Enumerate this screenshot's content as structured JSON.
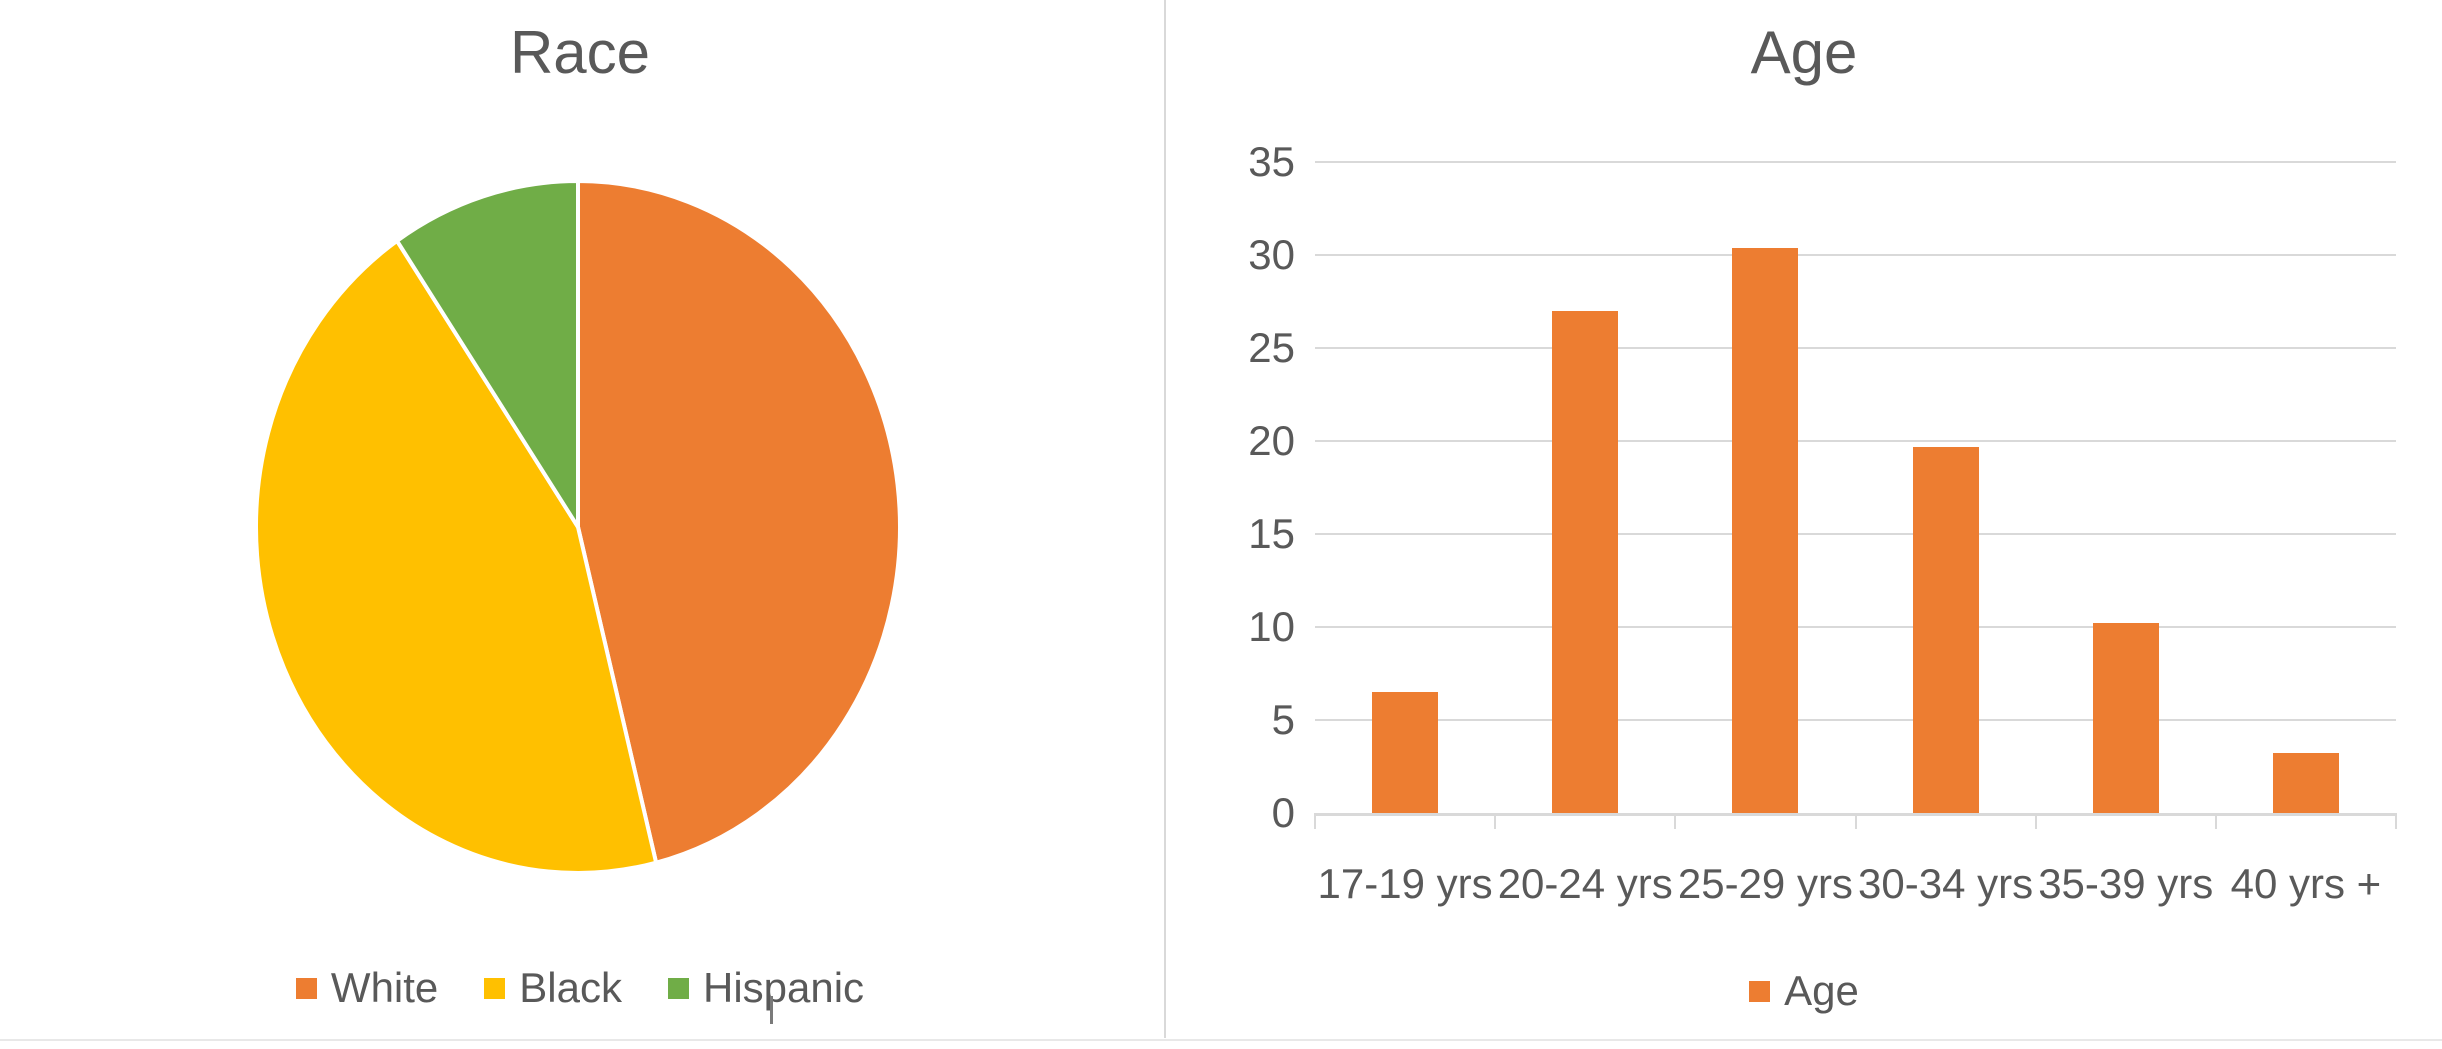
{
  "page": {
    "background": "#ffffff",
    "divider_color": "#d9d9d9",
    "bottom_border_color": "#e8e8e8",
    "text_color": "#595959"
  },
  "chart_data": [
    {
      "type": "pie",
      "title": "Race",
      "slices": [
        {
          "label": "White",
          "value": 46.1,
          "color": "#ED7D31"
        },
        {
          "label": "Black",
          "value": 44.4,
          "color": "#FFC000"
        },
        {
          "label": "Hispanic",
          "value": 9.5,
          "color": "#70AD47"
        }
      ],
      "values_are": "percent",
      "start_angle_deg": 0,
      "direction": "clockwise",
      "legend_position": "bottom",
      "slice_separator_color": "#ffffff"
    },
    {
      "type": "bar",
      "title": "Age",
      "series_name": "Age",
      "categories": [
        "17-19 yrs",
        "20-24 yrs",
        "25-29 yrs",
        "30-34 yrs",
        "35-39 yrs",
        "40 yrs +"
      ],
      "values": [
        6.5,
        27,
        30.4,
        19.7,
        10.2,
        3.2
      ],
      "bar_color": "#ED7D31",
      "ylim": [
        0,
        35
      ],
      "yticks": [
        0,
        5,
        10,
        15,
        20,
        25,
        30,
        35
      ],
      "grid": "horizontal",
      "gridline_color": "#d9d9d9",
      "axis_color": "#d9d9d9",
      "legend_position": "bottom"
    }
  ]
}
